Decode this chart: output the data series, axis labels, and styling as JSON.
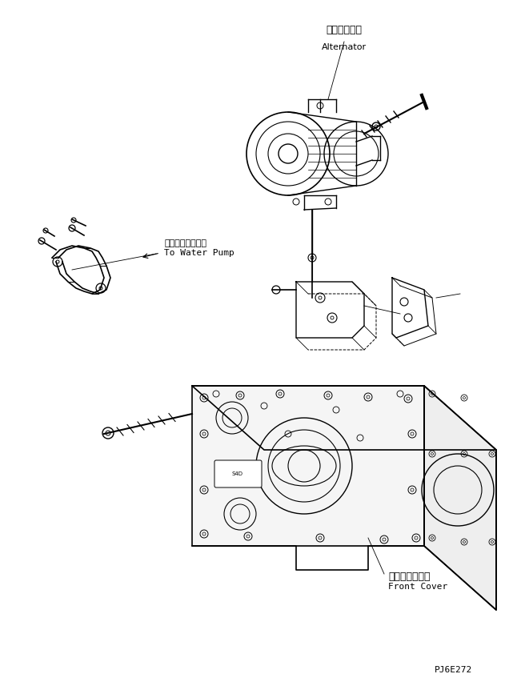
{
  "background_color": "#ffffff",
  "line_color": "#000000",
  "text_color": "#000000",
  "title_jp": "オルタネータ",
  "title_en": "Alternator",
  "label_water_jp": "ウォータポンプへ",
  "label_water_en": "To Water Pump",
  "label_front_jp": "フロントカバー",
  "label_front_en": "Front Cover",
  "part_number": "PJ6E272",
  "fig_width": 6.61,
  "fig_height": 8.72,
  "dpi": 100
}
